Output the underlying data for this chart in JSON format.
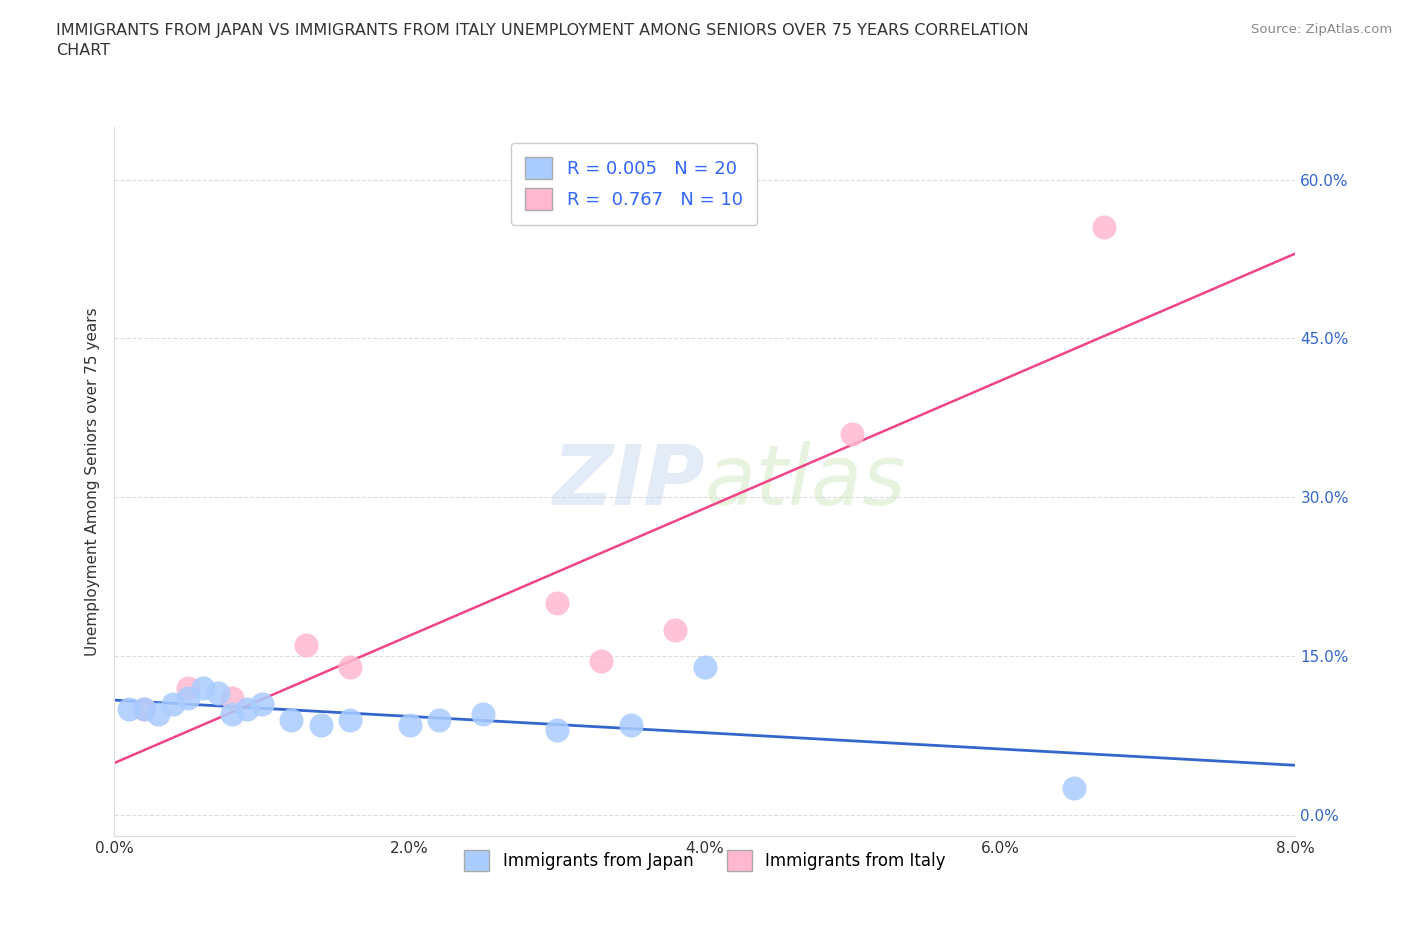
{
  "title": "IMMIGRANTS FROM JAPAN VS IMMIGRANTS FROM ITALY UNEMPLOYMENT AMONG SENIORS OVER 75 YEARS CORRELATION\nCHART",
  "source": "Source: ZipAtlas.com",
  "ylabel": "Unemployment Among Seniors over 75 years",
  "xlim": [
    0.0,
    0.08
  ],
  "ylim": [
    -0.02,
    0.65
  ],
  "yticks": [
    0.0,
    0.15,
    0.3,
    0.45,
    0.6
  ],
  "ytick_labels": [
    "0.0%",
    "15.0%",
    "30.0%",
    "45.0%",
    "60.0%"
  ],
  "xticks": [
    0.0,
    0.02,
    0.04,
    0.06,
    0.08
  ],
  "xtick_labels": [
    "0.0%",
    "2.0%",
    "4.0%",
    "6.0%",
    "8.0%"
  ],
  "japan_x": [
    0.001,
    0.002,
    0.003,
    0.004,
    0.005,
    0.006,
    0.007,
    0.008,
    0.009,
    0.01,
    0.012,
    0.014,
    0.016,
    0.02,
    0.022,
    0.025,
    0.03,
    0.035,
    0.04,
    0.065
  ],
  "japan_y": [
    0.1,
    0.1,
    0.095,
    0.105,
    0.11,
    0.12,
    0.115,
    0.095,
    0.1,
    0.105,
    0.09,
    0.085,
    0.09,
    0.085,
    0.09,
    0.095,
    0.08,
    0.085,
    0.14,
    0.025
  ],
  "italy_x": [
    0.002,
    0.005,
    0.008,
    0.013,
    0.016,
    0.03,
    0.033,
    0.038,
    0.05,
    0.067
  ],
  "italy_y": [
    0.1,
    0.12,
    0.11,
    0.16,
    0.14,
    0.2,
    0.145,
    0.175,
    0.36,
    0.555
  ],
  "japan_color": "#aaccff",
  "italy_color": "#ffb8d0",
  "japan_line_color": "#3366cc",
  "italy_line_color": "#ee4488",
  "japan_R": 0.005,
  "japan_N": 20,
  "italy_R": 0.767,
  "italy_N": 10,
  "background_color": "#ffffff",
  "watermark_zip": "ZIP",
  "watermark_atlas": "atlas",
  "grid_color": "#dddddd"
}
